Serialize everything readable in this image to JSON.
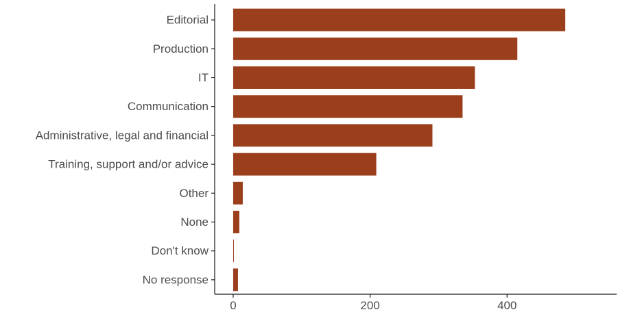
{
  "chart_data": {
    "type": "bar",
    "orientation": "horizontal",
    "categories": [
      "Editorial",
      "Production",
      "IT",
      "Communication",
      "Administrative, legal and financial",
      "Training, support and/or advice",
      "Other",
      "None",
      "Don't know",
      "No response"
    ],
    "values": [
      485,
      415,
      353,
      335,
      291,
      209,
      14,
      9,
      1,
      7
    ],
    "xticks": [
      0,
      200,
      400
    ],
    "xlim": [
      -27,
      560
    ],
    "title": "",
    "xlabel": "",
    "ylabel": "",
    "grid": false,
    "bar_color": "#9a3e1c"
  }
}
